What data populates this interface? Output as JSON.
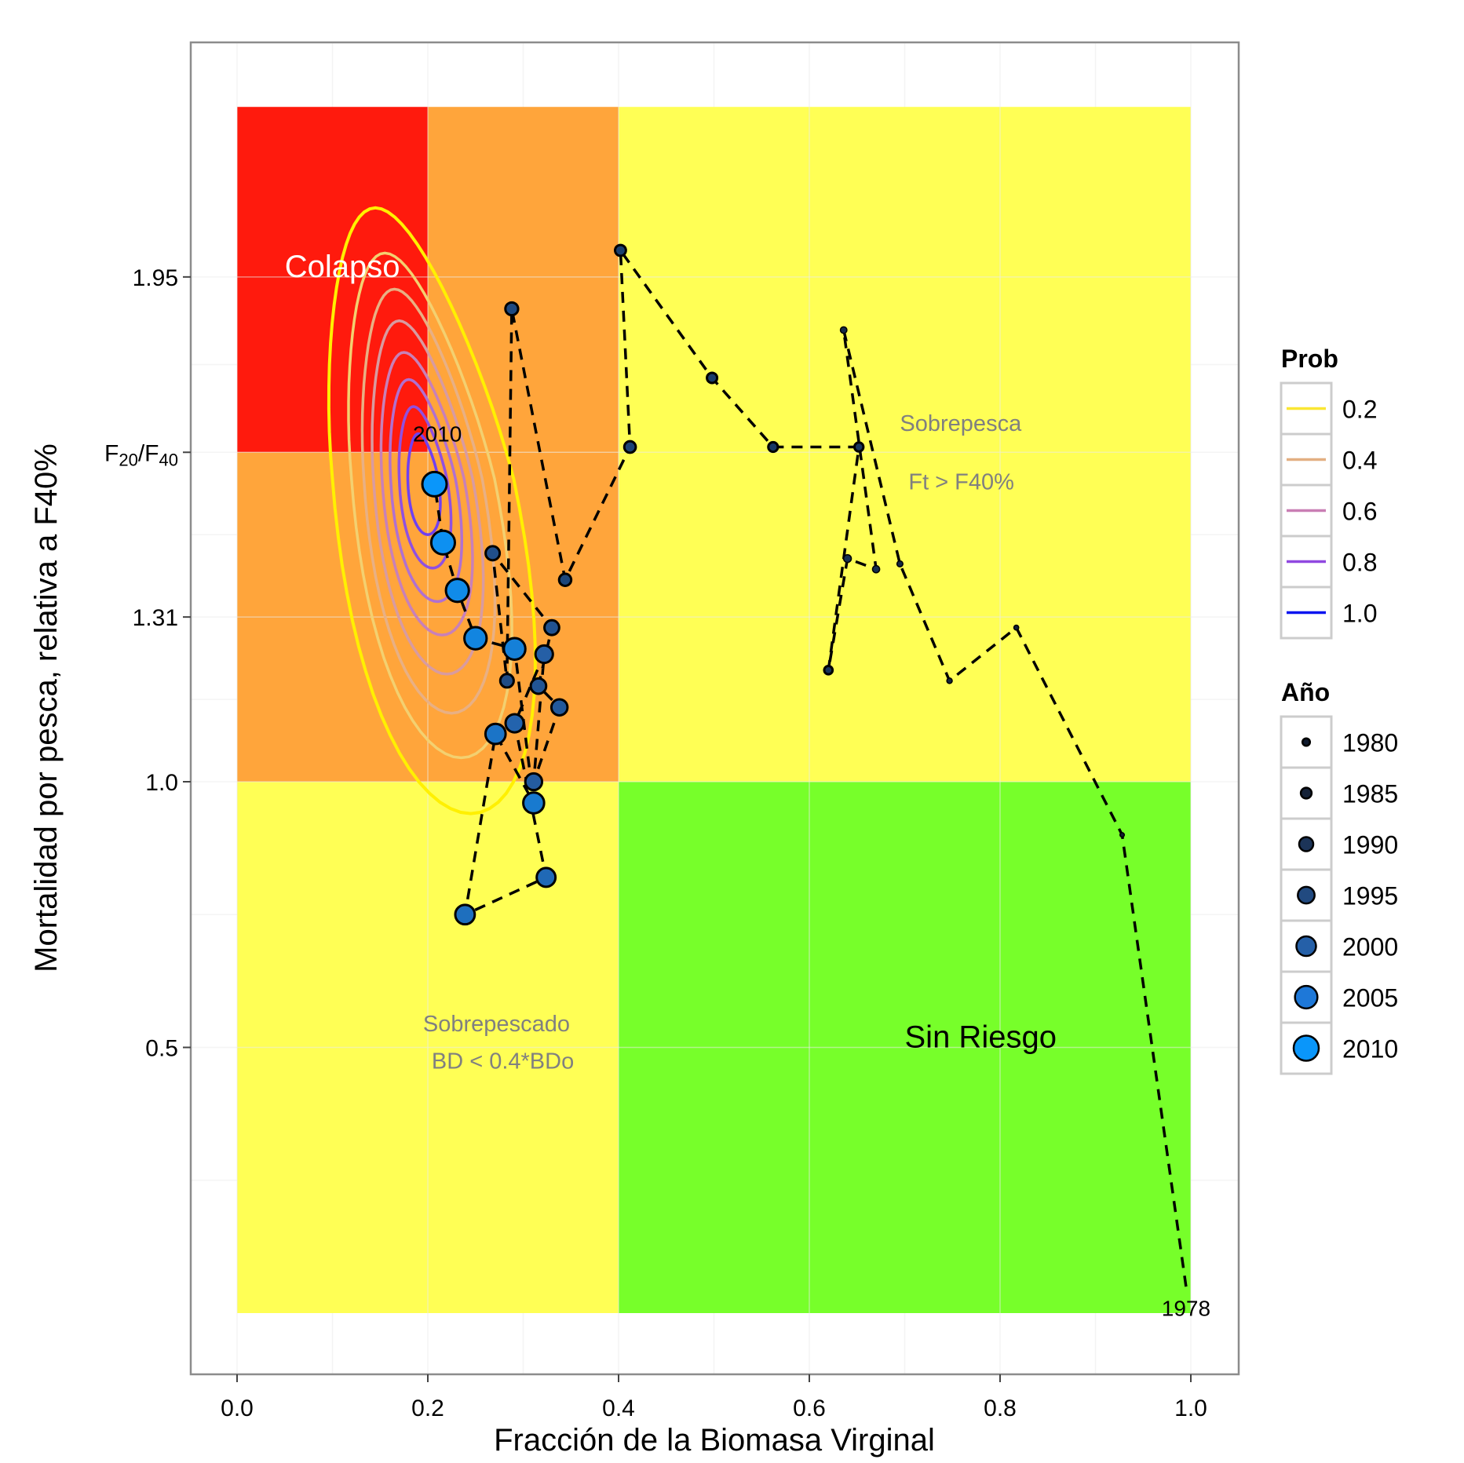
{
  "chart_data": {
    "type": "scatter",
    "title": "",
    "xlabel": "Fracción de la Biomasa Virginal",
    "ylabel": "Mortalidad por pesca, relativa a F40%",
    "xlim": [
      -0.05,
      1.05
    ],
    "ylim": [
      -0.11,
      2.39
    ],
    "grid": true,
    "x_ticks": [
      {
        "value": 0.0,
        "label": "0.0"
      },
      {
        "value": 0.2,
        "label": "0.2"
      },
      {
        "value": 0.4,
        "label": "0.4"
      },
      {
        "value": 0.6,
        "label": "0.6"
      },
      {
        "value": 0.8,
        "label": "0.8"
      },
      {
        "value": 1.0,
        "label": "1.0"
      }
    ],
    "y_ticks": [
      {
        "value": 0.5,
        "label": "0.5"
      },
      {
        "value": 1.0,
        "label": "1.0"
      },
      {
        "value": 1.31,
        "label": "1.31"
      },
      {
        "value": 1.62,
        "label": "F20/F40",
        "sub": true,
        "parts": [
          "F",
          "20",
          "/F",
          "40"
        ]
      },
      {
        "value": 1.95,
        "label": "1.95"
      }
    ],
    "zones": [
      {
        "name": "colapso",
        "x": [
          0.0,
          0.2
        ],
        "y": [
          1.62,
          2.27
        ],
        "color": "#FF1A0D"
      },
      {
        "name": "orange-top",
        "x": [
          0.2,
          0.4
        ],
        "y": [
          1.62,
          2.27
        ],
        "color": "#FFA53B"
      },
      {
        "name": "orange-mid",
        "x": [
          0.0,
          0.4
        ],
        "y": [
          1.0,
          1.62
        ],
        "color": "#FFA53B"
      },
      {
        "name": "sobrepesca",
        "x": [
          0.4,
          1.0
        ],
        "y": [
          1.0,
          2.27
        ],
        "color": "#FFFF55"
      },
      {
        "name": "sobrepescado",
        "x": [
          0.0,
          0.4
        ],
        "y": [
          0.0,
          1.0
        ],
        "color": "#FFFF55"
      },
      {
        "name": "sin-riesgo",
        "x": [
          0.4,
          1.0
        ],
        "y": [
          0.0,
          1.0
        ],
        "color": "#77FF2A"
      }
    ],
    "annotations": [
      {
        "name": "colapso-label",
        "text": "Colapso",
        "x": 0.05,
        "y": 1.95,
        "color": "#FFFFFF",
        "size": "large"
      },
      {
        "name": "sobrepesca-label-1",
        "text": "Sobrepesca",
        "x": 0.695,
        "y": 1.66,
        "color": "#808080",
        "size": "medium"
      },
      {
        "name": "sobrepesca-label-2",
        "text": "Ft > F40%",
        "x": 0.704,
        "y": 1.55,
        "color": "#808080",
        "size": "medium"
      },
      {
        "name": "sobrepescado-label-1",
        "text": "Sobrepescado",
        "x": 0.195,
        "y": 0.53,
        "color": "#808080",
        "size": "medium"
      },
      {
        "name": "sobrepescado-label-2",
        "text": "BD < 0.4*BDo",
        "x": 0.204,
        "y": 0.46,
        "color": "#808080",
        "size": "medium"
      },
      {
        "name": "sin-riesgo-label",
        "text": "Sin Riesgo",
        "x": 0.7,
        "y": 0.5,
        "color": "#000000",
        "size": "large"
      },
      {
        "name": "year-2010-label",
        "text": "2010",
        "x": 0.21,
        "y": 1.64,
        "color": "#000000",
        "size": "small"
      },
      {
        "name": "year-1978-label",
        "text": "1978",
        "x": 0.995,
        "y": -0.005,
        "color": "#000000",
        "size": "small"
      }
    ],
    "trajectory": [
      {
        "year": 1978,
        "x": 0.995,
        "y": 0.05
      },
      {
        "year": 1979,
        "x": 0.928,
        "y": 0.9
      },
      {
        "year": 1980,
        "x": 0.817,
        "y": 1.29
      },
      {
        "year": 1981,
        "x": 0.747,
        "y": 1.19
      },
      {
        "year": 1982,
        "x": 0.695,
        "y": 1.41
      },
      {
        "year": 1983,
        "x": 0.636,
        "y": 1.85
      },
      {
        "year": 1984,
        "x": 0.67,
        "y": 1.4
      },
      {
        "year": 1985,
        "x": 0.64,
        "y": 1.42
      },
      {
        "year": 1986,
        "x": 0.62,
        "y": 1.21
      },
      {
        "year": 1987,
        "x": 0.652,
        "y": 1.63
      },
      {
        "year": 1988,
        "x": 0.562,
        "y": 1.63
      },
      {
        "year": 1989,
        "x": 0.498,
        "y": 1.76
      },
      {
        "year": 1990,
        "x": 0.402,
        "y": 2.0
      },
      {
        "year": 1991,
        "x": 0.412,
        "y": 1.63
      },
      {
        "year": 1992,
        "x": 0.344,
        "y": 1.38
      },
      {
        "year": 1993,
        "x": 0.288,
        "y": 1.89
      },
      {
        "year": 1994,
        "x": 0.283,
        "y": 1.19
      },
      {
        "year": 1995,
        "x": 0.268,
        "y": 1.43
      },
      {
        "year": 1996,
        "x": 0.33,
        "y": 1.29
      },
      {
        "year": 1997,
        "x": 0.316,
        "y": 1.18
      },
      {
        "year": 1998,
        "x": 0.338,
        "y": 1.14
      },
      {
        "year": 1999,
        "x": 0.311,
        "y": 1.0
      },
      {
        "year": 2000,
        "x": 0.322,
        "y": 1.24
      },
      {
        "year": 2001,
        "x": 0.291,
        "y": 1.11
      },
      {
        "year": 2002,
        "x": 0.324,
        "y": 0.82
      },
      {
        "year": 2003,
        "x": 0.239,
        "y": 0.75
      },
      {
        "year": 2004,
        "x": 0.271,
        "y": 1.09
      },
      {
        "year": 2005,
        "x": 0.311,
        "y": 0.96
      },
      {
        "year": 2006,
        "x": 0.291,
        "y": 1.25
      },
      {
        "year": 2007,
        "x": 0.25,
        "y": 1.27
      },
      {
        "year": 2008,
        "x": 0.231,
        "y": 1.36
      },
      {
        "year": 2009,
        "x": 0.216,
        "y": 1.45
      },
      {
        "year": 2010,
        "x": 0.207,
        "y": 1.56
      }
    ],
    "density_contours": {
      "center": {
        "x": 0.195,
        "y": 1.57
      },
      "levels": [
        {
          "prob": 0.2,
          "color": "#FFF000",
          "rx": 0.095,
          "ry": 0.6,
          "skew": 0.05
        },
        {
          "prob": 0.3,
          "color": "#F3D070",
          "rx": 0.075,
          "ry": 0.5,
          "skew": 0.04
        },
        {
          "prob": 0.4,
          "color": "#E8B084",
          "rx": 0.062,
          "ry": 0.42,
          "skew": 0.03
        },
        {
          "prob": 0.5,
          "color": "#D89BA0",
          "rx": 0.052,
          "ry": 0.35,
          "skew": 0.025
        },
        {
          "prob": 0.6,
          "color": "#C880B8",
          "rx": 0.043,
          "ry": 0.28,
          "skew": 0.02
        },
        {
          "prob": 0.7,
          "color": "#B070D0",
          "rx": 0.034,
          "ry": 0.22,
          "skew": 0.015
        },
        {
          "prob": 0.8,
          "color": "#9050E0",
          "rx": 0.025,
          "ry": 0.16,
          "skew": 0.01
        },
        {
          "prob": 0.9,
          "color": "#7040F0",
          "rx": 0.016,
          "ry": 0.1,
          "skew": 0.005
        }
      ]
    },
    "legends": {
      "prob": {
        "title": "Prob",
        "items": [
          {
            "label": "0.2",
            "color": "#FAE633"
          },
          {
            "label": "0.4",
            "color": "#E3AF82"
          },
          {
            "label": "0.6",
            "color": "#C97EB4"
          },
          {
            "label": "0.8",
            "color": "#9048E0"
          },
          {
            "label": "1.0",
            "color": "#0A14F0"
          }
        ]
      },
      "year": {
        "title": "Año",
        "items": [
          {
            "label": "1980",
            "color": "#0F1A2E",
            "size": 0.2
          },
          {
            "label": "1985",
            "color": "#152238",
            "size": 0.35
          },
          {
            "label": "1990",
            "color": "#1C3458",
            "size": 0.5
          },
          {
            "label": "1995",
            "color": "#214A80",
            "size": 0.62
          },
          {
            "label": "2000",
            "color": "#2560A8",
            "size": 0.75
          },
          {
            "label": "2005",
            "color": "#1E78D8",
            "size": 0.88
          },
          {
            "label": "2010",
            "color": "#0A96FA",
            "size": 1.0
          }
        ]
      }
    }
  }
}
